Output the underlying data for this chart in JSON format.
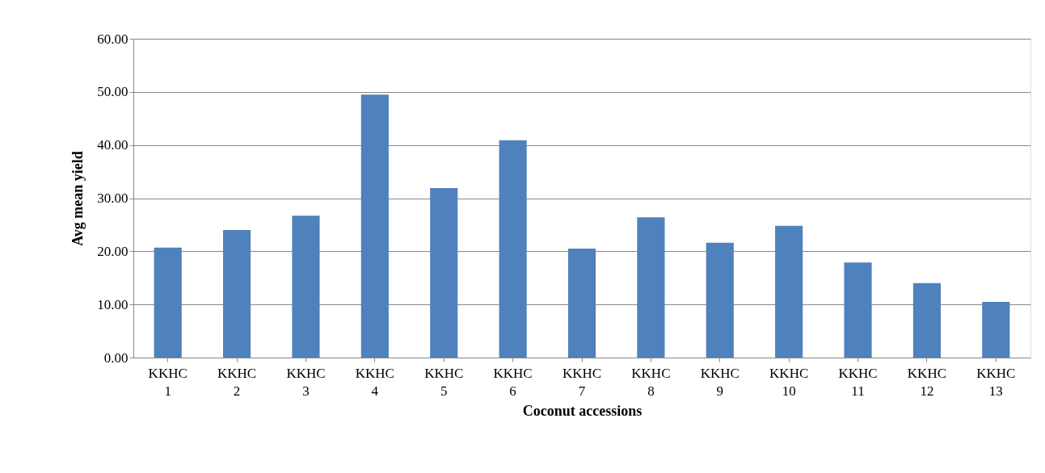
{
  "chart_data": {
    "type": "bar",
    "xlabel": "Coconut accessions",
    "ylabel": "Avg mean yield",
    "categories": [
      "KKHC 1",
      "KKHC 2",
      "KKHC 3",
      "KKHC 4",
      "KKHC 5",
      "KKHC 6",
      "KKHC 7",
      "KKHC 8",
      "KKHC 9",
      "KKHC 10",
      "KKHC 11",
      "KKHC 12",
      "KKHC 13"
    ],
    "values": [
      20.7,
      24.0,
      26.7,
      49.5,
      31.9,
      40.9,
      20.5,
      26.4,
      21.6,
      24.8,
      17.9,
      14.0,
      10.5
    ],
    "color": "#4f81bd",
    "ylim": [
      0,
      60
    ],
    "yticks": [
      {
        "value": 0,
        "label": "0.00"
      },
      {
        "value": 10,
        "label": "10.00"
      },
      {
        "value": 20,
        "label": "20.00"
      },
      {
        "value": 30,
        "label": "30.00"
      },
      {
        "value": 40,
        "label": "40.00"
      },
      {
        "value": 50,
        "label": "50.00"
      },
      {
        "value": 60,
        "label": "60.00"
      }
    ],
    "grid": "y"
  }
}
